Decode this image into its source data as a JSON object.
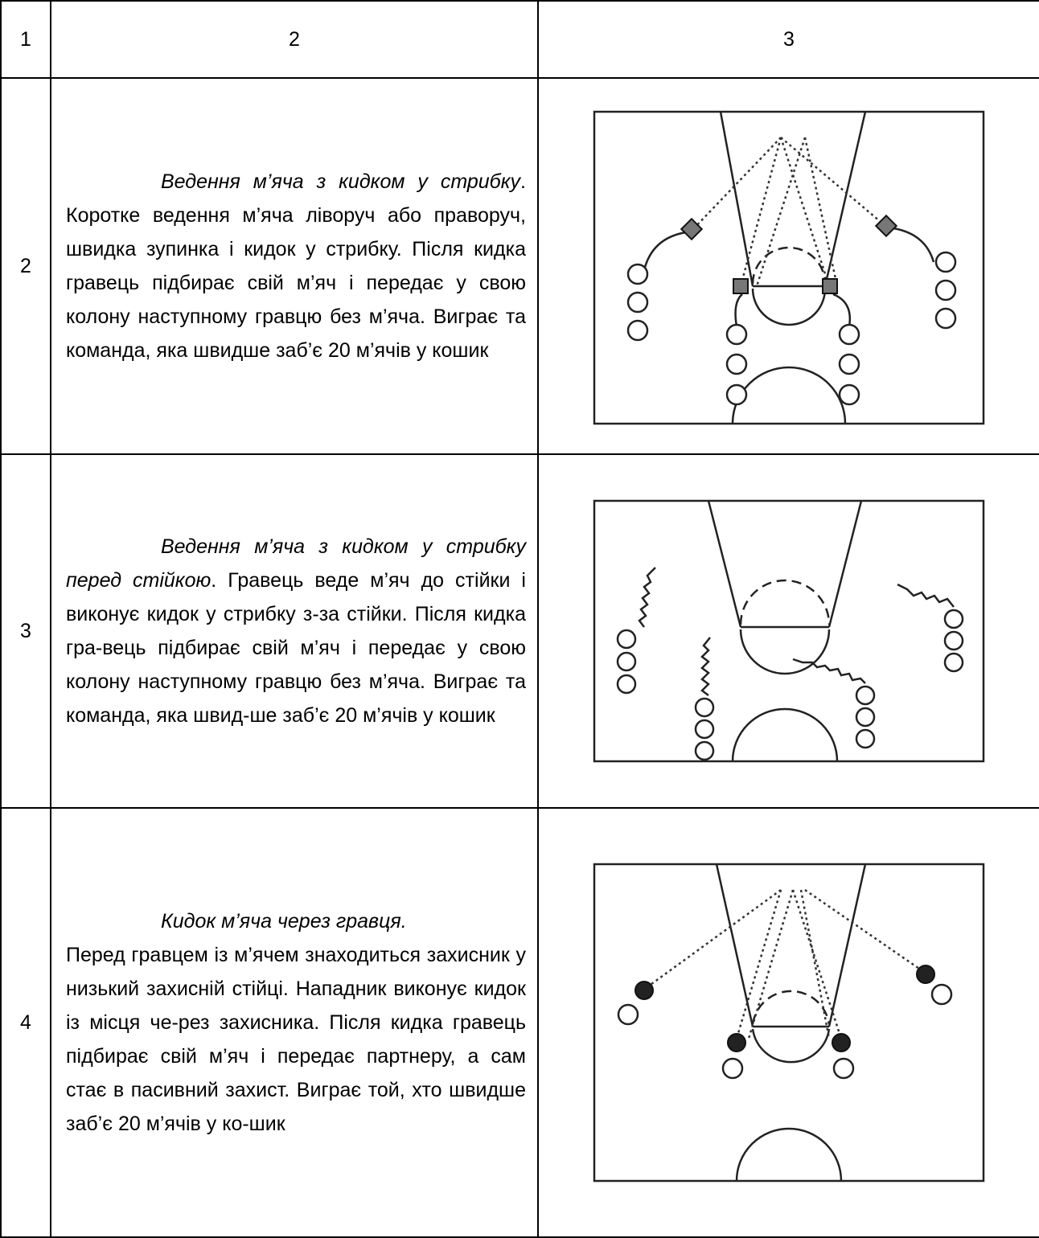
{
  "header": [
    "1",
    "2",
    "3"
  ],
  "rows": [
    {
      "number": "2",
      "title": "Ведення м’яча з кидком у стрибку",
      "text": ". Коротке ведення м’яча ліворуч або праворуч, швидка зупинка і кидок у стрибку. Після кидка гравець підбирає свій м’яч і передає у свою колону наступному гравцю без м’яча. Виграє та команда, яка швидше заб’є 20 м’ячів у кошик"
    },
    {
      "number": "3",
      "title": "Ведення м’яча з кидком у стрибку перед стійкою",
      "text": ". Гравець веде м’яч до стійки і виконує кидок у стрибку з-за стійки. Після кидка гра-вець підбирає свій м’яч і передає у свою колону наступному гравцю без м’яча. Виграє та команда, яка швид-ше заб’є 20 м’ячів у кошик"
    },
    {
      "number": "4",
      "title": "Кидок м’яча через гравця.",
      "text": "Перед гравцем із м’ячем знаходиться захисник у низький захисній стійці. Нападник виконує кидок із місця че-рез захисника. Після кидка гравець підбирає свій м’яч і передає партнеру, а сам стає в пасивний захист. Виграє той, хто швидше заб’є 20 м’ячів у ко-шик"
    }
  ]
}
